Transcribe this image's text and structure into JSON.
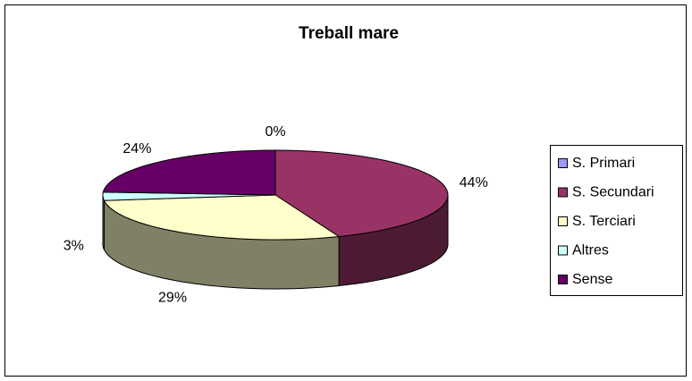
{
  "chart_data": {
    "type": "pie3d",
    "title": "Treball mare",
    "categories": [
      "S. Primari",
      "S. Secundari",
      "S. Terciari",
      "Altres",
      "Sense"
    ],
    "values": [
      0,
      44,
      29,
      3,
      24
    ],
    "value_labels": [
      "0%",
      "44%",
      "29%",
      "3%",
      "24%"
    ],
    "colors": [
      "#9999ff",
      "#993366",
      "#ffffcc",
      "#ccffff",
      "#660066"
    ],
    "legend": "right"
  }
}
